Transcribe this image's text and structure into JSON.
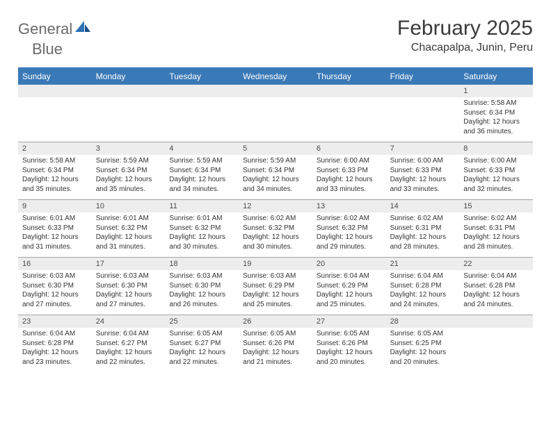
{
  "logo": {
    "text1": "General",
    "text2": "Blue"
  },
  "header": {
    "month_title": "February 2025",
    "location": "Chacapalpa, Junin, Peru"
  },
  "colors": {
    "header_bar": "#3a79b7",
    "header_text": "#ffffff",
    "daynum_bg": "#ededed",
    "grid_line": "#9fa4a8",
    "text": "#333333",
    "logo_gray": "#6a6a6a",
    "logo_blue": "#2e74b5",
    "background": "#ffffff"
  },
  "days_of_week": [
    "Sunday",
    "Monday",
    "Tuesday",
    "Wednesday",
    "Thursday",
    "Friday",
    "Saturday"
  ],
  "weeks": [
    [
      {
        "n": "",
        "sr": "",
        "ss": "",
        "dl": ""
      },
      {
        "n": "",
        "sr": "",
        "ss": "",
        "dl": ""
      },
      {
        "n": "",
        "sr": "",
        "ss": "",
        "dl": ""
      },
      {
        "n": "",
        "sr": "",
        "ss": "",
        "dl": ""
      },
      {
        "n": "",
        "sr": "",
        "ss": "",
        "dl": ""
      },
      {
        "n": "",
        "sr": "",
        "ss": "",
        "dl": ""
      },
      {
        "n": "1",
        "sr": "Sunrise: 5:58 AM",
        "ss": "Sunset: 6:34 PM",
        "dl": "Daylight: 12 hours and 36 minutes."
      }
    ],
    [
      {
        "n": "2",
        "sr": "Sunrise: 5:58 AM",
        "ss": "Sunset: 6:34 PM",
        "dl": "Daylight: 12 hours and 35 minutes."
      },
      {
        "n": "3",
        "sr": "Sunrise: 5:59 AM",
        "ss": "Sunset: 6:34 PM",
        "dl": "Daylight: 12 hours and 35 minutes."
      },
      {
        "n": "4",
        "sr": "Sunrise: 5:59 AM",
        "ss": "Sunset: 6:34 PM",
        "dl": "Daylight: 12 hours and 34 minutes."
      },
      {
        "n": "5",
        "sr": "Sunrise: 5:59 AM",
        "ss": "Sunset: 6:34 PM",
        "dl": "Daylight: 12 hours and 34 minutes."
      },
      {
        "n": "6",
        "sr": "Sunrise: 6:00 AM",
        "ss": "Sunset: 6:33 PM",
        "dl": "Daylight: 12 hours and 33 minutes."
      },
      {
        "n": "7",
        "sr": "Sunrise: 6:00 AM",
        "ss": "Sunset: 6:33 PM",
        "dl": "Daylight: 12 hours and 33 minutes."
      },
      {
        "n": "8",
        "sr": "Sunrise: 6:00 AM",
        "ss": "Sunset: 6:33 PM",
        "dl": "Daylight: 12 hours and 32 minutes."
      }
    ],
    [
      {
        "n": "9",
        "sr": "Sunrise: 6:01 AM",
        "ss": "Sunset: 6:33 PM",
        "dl": "Daylight: 12 hours and 31 minutes."
      },
      {
        "n": "10",
        "sr": "Sunrise: 6:01 AM",
        "ss": "Sunset: 6:32 PM",
        "dl": "Daylight: 12 hours and 31 minutes."
      },
      {
        "n": "11",
        "sr": "Sunrise: 6:01 AM",
        "ss": "Sunset: 6:32 PM",
        "dl": "Daylight: 12 hours and 30 minutes."
      },
      {
        "n": "12",
        "sr": "Sunrise: 6:02 AM",
        "ss": "Sunset: 6:32 PM",
        "dl": "Daylight: 12 hours and 30 minutes."
      },
      {
        "n": "13",
        "sr": "Sunrise: 6:02 AM",
        "ss": "Sunset: 6:32 PM",
        "dl": "Daylight: 12 hours and 29 minutes."
      },
      {
        "n": "14",
        "sr": "Sunrise: 6:02 AM",
        "ss": "Sunset: 6:31 PM",
        "dl": "Daylight: 12 hours and 28 minutes."
      },
      {
        "n": "15",
        "sr": "Sunrise: 6:02 AM",
        "ss": "Sunset: 6:31 PM",
        "dl": "Daylight: 12 hours and 28 minutes."
      }
    ],
    [
      {
        "n": "16",
        "sr": "Sunrise: 6:03 AM",
        "ss": "Sunset: 6:30 PM",
        "dl": "Daylight: 12 hours and 27 minutes."
      },
      {
        "n": "17",
        "sr": "Sunrise: 6:03 AM",
        "ss": "Sunset: 6:30 PM",
        "dl": "Daylight: 12 hours and 27 minutes."
      },
      {
        "n": "18",
        "sr": "Sunrise: 6:03 AM",
        "ss": "Sunset: 6:30 PM",
        "dl": "Daylight: 12 hours and 26 minutes."
      },
      {
        "n": "19",
        "sr": "Sunrise: 6:03 AM",
        "ss": "Sunset: 6:29 PM",
        "dl": "Daylight: 12 hours and 25 minutes."
      },
      {
        "n": "20",
        "sr": "Sunrise: 6:04 AM",
        "ss": "Sunset: 6:29 PM",
        "dl": "Daylight: 12 hours and 25 minutes."
      },
      {
        "n": "21",
        "sr": "Sunrise: 6:04 AM",
        "ss": "Sunset: 6:28 PM",
        "dl": "Daylight: 12 hours and 24 minutes."
      },
      {
        "n": "22",
        "sr": "Sunrise: 6:04 AM",
        "ss": "Sunset: 6:28 PM",
        "dl": "Daylight: 12 hours and 24 minutes."
      }
    ],
    [
      {
        "n": "23",
        "sr": "Sunrise: 6:04 AM",
        "ss": "Sunset: 6:28 PM",
        "dl": "Daylight: 12 hours and 23 minutes."
      },
      {
        "n": "24",
        "sr": "Sunrise: 6:04 AM",
        "ss": "Sunset: 6:27 PM",
        "dl": "Daylight: 12 hours and 22 minutes."
      },
      {
        "n": "25",
        "sr": "Sunrise: 6:05 AM",
        "ss": "Sunset: 6:27 PM",
        "dl": "Daylight: 12 hours and 22 minutes."
      },
      {
        "n": "26",
        "sr": "Sunrise: 6:05 AM",
        "ss": "Sunset: 6:26 PM",
        "dl": "Daylight: 12 hours and 21 minutes."
      },
      {
        "n": "27",
        "sr": "Sunrise: 6:05 AM",
        "ss": "Sunset: 6:26 PM",
        "dl": "Daylight: 12 hours and 20 minutes."
      },
      {
        "n": "28",
        "sr": "Sunrise: 6:05 AM",
        "ss": "Sunset: 6:25 PM",
        "dl": "Daylight: 12 hours and 20 minutes."
      },
      {
        "n": "",
        "sr": "",
        "ss": "",
        "dl": ""
      }
    ]
  ]
}
